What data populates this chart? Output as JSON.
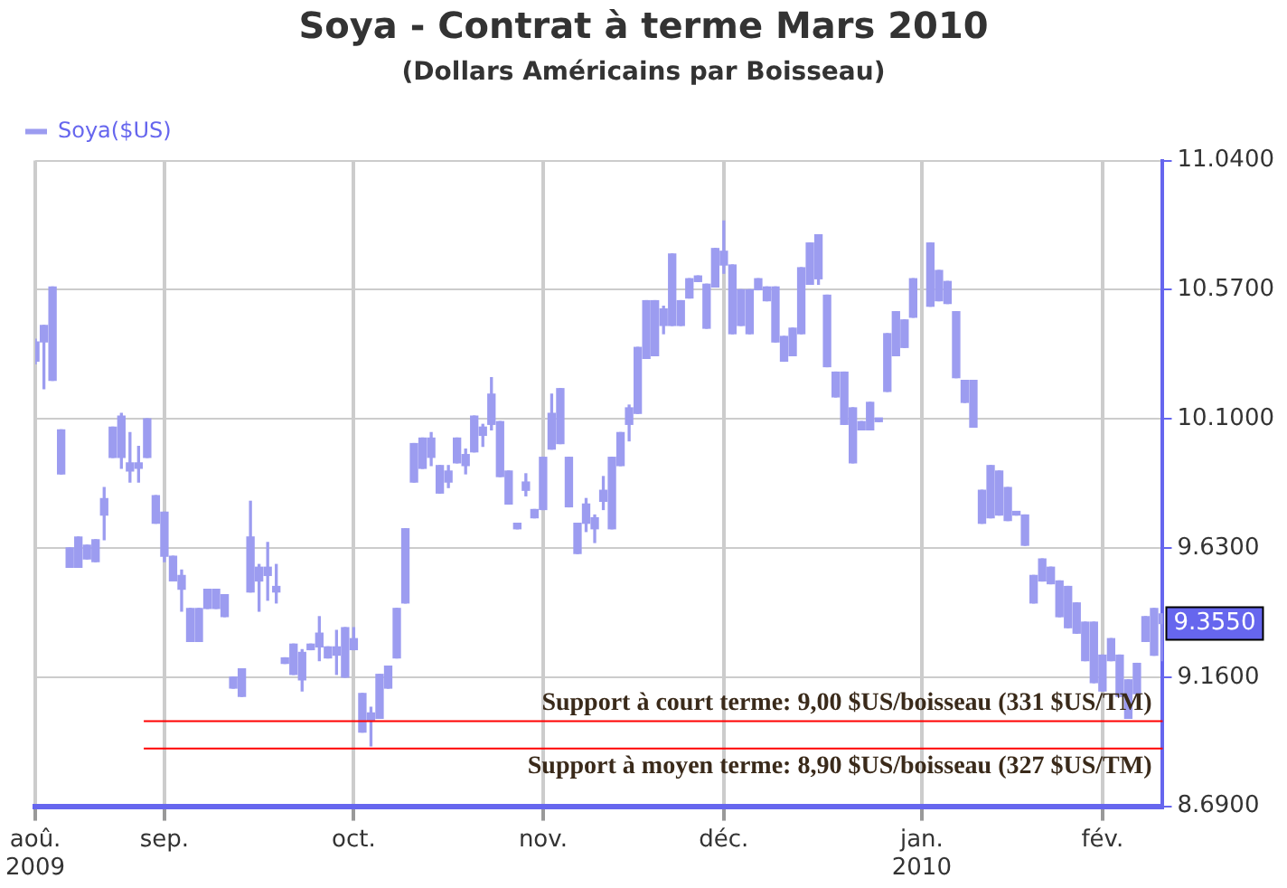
{
  "chart_data": {
    "type": "candlestick",
    "title": "Soya - Contrat à terme Mars 2010",
    "subtitle": "(Dollars Américains par Boisseau)",
    "categories": [
      "aoû. 2009",
      null,
      null,
      null,
      null,
      null,
      null,
      null,
      null,
      null,
      null,
      null,
      null,
      null,
      null,
      "sep.",
      null,
      null,
      null,
      null,
      null,
      null,
      null,
      null,
      null,
      null,
      null,
      null,
      null,
      null,
      null,
      null,
      null,
      null,
      null,
      null,
      null,
      "oct.",
      null,
      null,
      null,
      null,
      null,
      null,
      null,
      null,
      null,
      null,
      null,
      null,
      null,
      null,
      null,
      null,
      null,
      null,
      null,
      null,
      null,
      "nov.",
      null,
      null,
      null,
      null,
      null,
      null,
      null,
      null,
      null,
      null,
      null,
      null,
      null,
      null,
      null,
      null,
      null,
      null,
      null,
      null,
      "déc.",
      null,
      null,
      null,
      null,
      null,
      null,
      null,
      null,
      null,
      null,
      null,
      null,
      null,
      null,
      null,
      null,
      null,
      null,
      null,
      null,
      null,
      null,
      "jan. 2010",
      null,
      null,
      null,
      null,
      null,
      null,
      null,
      null,
      null,
      null,
      null,
      null,
      null,
      null,
      null,
      null,
      null,
      null,
      null,
      null,
      "fév.",
      null,
      null,
      null,
      null,
      null,
      null,
      null
    ],
    "series": [
      {
        "name": "Soya($US)",
        "color": "#9c9cf0",
        "ohlc": [
          [
            10.38,
            10.39,
            10.3,
            10.31
          ],
          [
            10.44,
            10.44,
            10.21,
            10.38
          ],
          [
            10.58,
            10.58,
            10.24,
            10.24
          ],
          [
            10.06,
            10.06,
            9.9,
            9.9
          ],
          [
            9.63,
            9.63,
            9.56,
            9.56
          ],
          [
            9.67,
            9.67,
            9.56,
            9.56
          ],
          [
            9.64,
            9.64,
            9.59,
            9.59
          ],
          [
            9.66,
            9.66,
            9.58,
            9.58
          ],
          [
            9.81,
            9.85,
            9.66,
            9.75
          ],
          [
            10.07,
            10.07,
            9.96,
            9.96
          ],
          [
            10.11,
            10.12,
            9.92,
            9.96
          ],
          [
            9.94,
            10.05,
            9.87,
            9.91
          ],
          [
            9.94,
            10.0,
            9.87,
            9.92
          ],
          [
            10.1,
            10.1,
            9.96,
            9.96
          ],
          [
            9.82,
            9.82,
            9.72,
            9.72
          ],
          [
            9.76,
            9.76,
            9.58,
            9.6
          ],
          [
            9.6,
            9.6,
            9.51,
            9.51
          ],
          [
            9.53,
            9.55,
            9.4,
            9.48
          ],
          [
            9.41,
            9.41,
            9.29,
            9.29
          ],
          [
            9.41,
            9.41,
            9.29,
            9.29
          ],
          [
            9.48,
            9.48,
            9.41,
            9.41
          ],
          [
            9.48,
            9.48,
            9.41,
            9.41
          ],
          [
            9.46,
            9.46,
            9.38,
            9.38
          ],
          [
            9.16,
            9.16,
            9.12,
            9.12
          ],
          [
            9.19,
            9.19,
            9.09,
            9.09
          ],
          [
            9.67,
            9.8,
            9.47,
            9.47
          ],
          [
            9.56,
            9.57,
            9.4,
            9.51
          ],
          [
            9.56,
            9.65,
            9.44,
            9.53
          ],
          [
            9.49,
            9.57,
            9.43,
            9.47
          ],
          [
            9.23,
            9.23,
            9.21,
            9.21
          ],
          [
            9.28,
            9.28,
            9.17,
            9.17
          ],
          [
            9.25,
            9.26,
            9.11,
            9.15
          ],
          [
            9.28,
            9.28,
            9.26,
            9.26
          ],
          [
            9.32,
            9.38,
            9.22,
            9.27
          ],
          [
            9.27,
            9.27,
            9.23,
            9.23
          ],
          [
            9.27,
            9.33,
            9.17,
            9.24
          ],
          [
            9.34,
            9.34,
            9.16,
            9.16
          ],
          [
            9.3,
            9.34,
            9.26,
            9.26
          ],
          [
            9.1,
            9.1,
            8.96,
            8.96
          ],
          [
            9.03,
            9.05,
            8.91,
            9.0
          ],
          [
            9.17,
            9.17,
            9.01,
            9.01
          ],
          [
            9.2,
            9.2,
            9.12,
            9.12
          ],
          [
            9.41,
            9.41,
            9.23,
            9.23
          ],
          [
            9.7,
            9.7,
            9.43,
            9.43
          ],
          [
            10.01,
            10.01,
            9.87,
            9.87
          ],
          [
            10.03,
            10.03,
            9.92,
            9.92
          ],
          [
            10.03,
            10.05,
            9.93,
            9.96
          ],
          [
            9.93,
            9.93,
            9.83,
            9.83
          ],
          [
            9.91,
            9.93,
            9.85,
            9.87
          ],
          [
            10.03,
            10.03,
            9.94,
            9.94
          ],
          [
            9.97,
            9.99,
            9.9,
            9.93
          ],
          [
            10.11,
            10.11,
            9.98,
            9.98
          ],
          [
            10.07,
            10.08,
            10.0,
            10.04
          ],
          [
            10.19,
            10.25,
            10.06,
            10.08
          ],
          [
            10.09,
            10.09,
            9.89,
            9.89
          ],
          [
            9.91,
            9.91,
            9.79,
            9.79
          ],
          [
            9.72,
            9.72,
            9.7,
            9.7
          ],
          [
            9.87,
            9.9,
            9.82,
            9.84
          ],
          [
            9.77,
            9.77,
            9.74,
            9.74
          ],
          [
            9.96,
            9.96,
            9.77,
            9.77
          ],
          [
            10.12,
            10.19,
            9.99,
            9.99
          ],
          [
            10.21,
            10.21,
            10.01,
            10.01
          ],
          [
            9.96,
            9.96,
            9.78,
            9.78
          ],
          [
            9.72,
            9.72,
            9.61,
            9.61
          ],
          [
            9.79,
            9.81,
            9.69,
            9.72
          ],
          [
            9.74,
            9.75,
            9.65,
            9.7
          ],
          [
            9.84,
            9.89,
            9.77,
            9.8
          ],
          [
            9.96,
            9.96,
            9.7,
            9.7
          ],
          [
            10.05,
            10.05,
            9.93,
            9.93
          ],
          [
            10.14,
            10.15,
            10.02,
            10.08
          ],
          [
            10.36,
            10.36,
            10.12,
            10.12
          ],
          [
            10.53,
            10.53,
            10.32,
            10.32
          ],
          [
            10.53,
            10.53,
            10.33,
            10.33
          ],
          [
            10.5,
            10.51,
            10.41,
            10.44
          ],
          [
            10.7,
            10.7,
            10.44,
            10.44
          ],
          [
            10.53,
            10.53,
            10.44,
            10.44
          ],
          [
            10.61,
            10.61,
            10.54,
            10.54
          ],
          [
            10.62,
            10.62,
            10.6,
            10.6
          ],
          [
            10.59,
            10.59,
            10.43,
            10.43
          ],
          [
            10.72,
            10.72,
            10.58,
            10.58
          ],
          [
            10.71,
            10.82,
            10.63,
            10.66
          ],
          [
            10.66,
            10.66,
            10.41,
            10.41
          ],
          [
            10.57,
            10.57,
            10.44,
            10.44
          ],
          [
            10.57,
            10.57,
            10.41,
            10.41
          ],
          [
            10.61,
            10.61,
            10.57,
            10.57
          ],
          [
            10.58,
            10.58,
            10.53,
            10.53
          ],
          [
            10.58,
            10.58,
            10.38,
            10.38
          ],
          [
            10.4,
            10.4,
            10.31,
            10.31
          ],
          [
            10.43,
            10.43,
            10.33,
            10.33
          ],
          [
            10.65,
            10.65,
            10.41,
            10.41
          ],
          [
            10.74,
            10.74,
            10.59,
            10.59
          ],
          [
            10.77,
            10.77,
            10.59,
            10.61
          ],
          [
            10.55,
            10.55,
            10.29,
            10.29
          ],
          [
            10.27,
            10.27,
            10.18,
            10.18
          ],
          [
            10.27,
            10.27,
            10.08,
            10.08
          ],
          [
            10.14,
            10.14,
            9.94,
            9.94
          ],
          [
            10.09,
            10.09,
            10.06,
            10.06
          ],
          [
            10.16,
            10.16,
            10.06,
            10.06
          ],
          [
            10.1,
            10.1,
            10.09,
            10.09
          ],
          [
            10.41,
            10.41,
            10.2,
            10.2
          ],
          [
            10.49,
            10.49,
            10.33,
            10.33
          ],
          [
            10.46,
            10.46,
            10.36,
            10.36
          ],
          [
            10.61,
            10.61,
            10.47,
            10.47
          ],
          null,
          [
            10.74,
            10.74,
            10.51,
            10.51
          ],
          [
            10.64,
            10.64,
            10.53,
            10.53
          ],
          [
            10.6,
            10.6,
            10.52,
            10.52
          ],
          [
            10.49,
            10.49,
            10.25,
            10.25
          ],
          [
            10.24,
            10.24,
            10.16,
            10.16
          ],
          [
            10.24,
            10.24,
            10.07,
            10.07
          ],
          [
            9.84,
            9.84,
            9.72,
            9.72
          ],
          [
            9.93,
            9.93,
            9.74,
            9.74
          ],
          [
            9.91,
            9.91,
            9.75,
            9.75
          ],
          [
            9.85,
            9.85,
            9.73,
            9.73
          ],
          [
            9.76,
            9.76,
            9.75,
            9.75
          ],
          [
            9.75,
            9.75,
            9.64,
            9.64
          ],
          [
            9.53,
            9.53,
            9.43,
            9.43
          ],
          [
            9.59,
            9.59,
            9.51,
            9.51
          ],
          [
            9.56,
            9.56,
            9.5,
            9.5
          ],
          [
            9.51,
            9.51,
            9.38,
            9.38
          ],
          [
            9.49,
            9.49,
            9.34,
            9.34
          ],
          [
            9.43,
            9.43,
            9.32,
            9.32
          ],
          [
            9.36,
            9.36,
            9.22,
            9.22
          ],
          [
            9.36,
            9.36,
            9.14,
            9.14
          ],
          [
            9.24,
            9.24,
            9.11,
            9.11
          ],
          [
            9.3,
            9.3,
            9.22,
            9.22
          ],
          [
            9.24,
            9.24,
            9.09,
            9.09
          ],
          [
            9.15,
            9.15,
            9.01,
            9.01
          ],
          [
            9.21,
            9.21,
            9.1,
            9.1
          ],
          [
            9.38,
            9.38,
            9.29,
            9.29
          ],
          [
            9.41,
            9.41,
            9.24,
            9.24
          ],
          [
            9.39,
            9.39,
            9.22,
            9.355
          ]
        ]
      }
    ],
    "ylim": [
      8.69,
      11.04
    ],
    "yticks": [
      {
        "value": 8.69,
        "label": "8.6900"
      },
      {
        "value": 9.16,
        "label": "9.1600"
      },
      {
        "value": 9.63,
        "label": "9.6300"
      },
      {
        "value": 10.1,
        "label": "10.1000"
      },
      {
        "value": 10.57,
        "label": "10.5700"
      },
      {
        "value": 11.04,
        "label": "11.0400"
      }
    ],
    "grid": true,
    "legend": "top left",
    "ref_lines": [
      {
        "axis": "y",
        "value": 9.0,
        "label": "Support à court terme: 9,00 $US/boisseau (331 $US/TM)",
        "color": "#ff0000"
      },
      {
        "axis": "y",
        "value": 8.9,
        "label": "Support à moyen terme: 8,90 $US/boisseau (327 $US/TM)",
        "color": "#ff0000"
      }
    ],
    "annotations": [
      "9.3550"
    ]
  }
}
